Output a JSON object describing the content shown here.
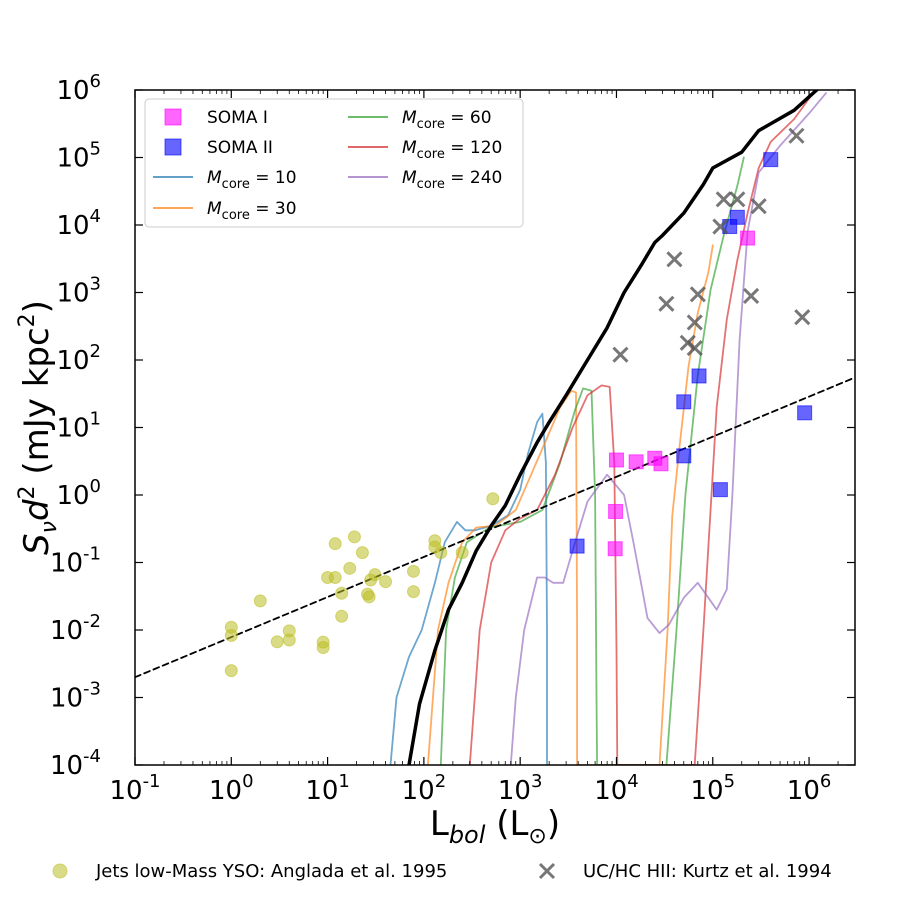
{
  "chart_data": {
    "type": "scatter",
    "title": "",
    "xlabel": "L_bol (L_sun)",
    "ylabel": "S_ν d² (mJy kpc²)",
    "xscale": "log",
    "yscale": "log",
    "xlim": [
      0.1,
      3000000
    ],
    "ylim": [
      0.0001,
      1000000
    ],
    "grid": false,
    "legend_placement": "top-left",
    "x_ticks": [
      {
        "exp": "-1",
        "value": 0.1
      },
      {
        "exp": "0",
        "value": 1
      },
      {
        "exp": "1",
        "value": 10
      },
      {
        "exp": "2",
        "value": 100
      },
      {
        "exp": "3",
        "value": 1000
      },
      {
        "exp": "4",
        "value": 10000
      },
      {
        "exp": "5",
        "value": 100000
      },
      {
        "exp": "6",
        "value": 1000000
      }
    ],
    "y_ticks": [
      {
        "exp": "-4",
        "value": 0.0001
      },
      {
        "exp": "-3",
        "value": 0.001
      },
      {
        "exp": "-2",
        "value": 0.01
      },
      {
        "exp": "-1",
        "value": 0.1
      },
      {
        "exp": "0",
        "value": 1
      },
      {
        "exp": "1",
        "value": 10
      },
      {
        "exp": "2",
        "value": 100
      },
      {
        "exp": "3",
        "value": 1000
      },
      {
        "exp": "4",
        "value": 10000
      },
      {
        "exp": "5",
        "value": 100000
      },
      {
        "exp": "6",
        "value": 1000000
      }
    ],
    "scatter_series": [
      {
        "name": "SOMA I",
        "marker": "square",
        "color": "#ff00ff",
        "points": [
          [
            10000,
            3.3
          ],
          [
            16000,
            3.1
          ],
          [
            25000,
            3.5
          ],
          [
            29000,
            2.9
          ],
          [
            9800,
            0.57
          ],
          [
            9700,
            0.16
          ],
          [
            230000,
            6400
          ]
        ]
      },
      {
        "name": "SOMA II",
        "marker": "square",
        "color": "#0000ff",
        "points": [
          [
            3900,
            0.175
          ],
          [
            50000,
            24
          ],
          [
            72000,
            58
          ],
          [
            50000,
            3.8
          ],
          [
            120000,
            1.2
          ],
          [
            150000,
            9500
          ],
          [
            180000,
            13000
          ],
          [
            400000,
            93000
          ],
          [
            900000,
            16.5
          ]
        ]
      },
      {
        "name": "Jets low-Mass YSO: Anglada et al. 1995",
        "marker": "circle",
        "color": "#bcbd22",
        "points": [
          [
            1,
            0.011
          ],
          [
            1,
            0.0083
          ],
          [
            1,
            0.0025
          ],
          [
            2,
            0.027
          ],
          [
            3,
            0.0067
          ],
          [
            4,
            0.0097
          ],
          [
            4,
            0.0071
          ],
          [
            9,
            0.0066
          ],
          [
            9,
            0.0055
          ],
          [
            10,
            0.06
          ],
          [
            12,
            0.06
          ],
          [
            12,
            0.19
          ],
          [
            14,
            0.016
          ],
          [
            14,
            0.035
          ],
          [
            17,
            0.082
          ],
          [
            19,
            0.24
          ],
          [
            23,
            0.14
          ],
          [
            26,
            0.034
          ],
          [
            27,
            0.031
          ],
          [
            28,
            0.055
          ],
          [
            31,
            0.066
          ],
          [
            40,
            0.052
          ],
          [
            78,
            0.037
          ],
          [
            78,
            0.074
          ],
          [
            130,
            0.21
          ],
          [
            130,
            0.17
          ],
          [
            150,
            0.14
          ],
          [
            250,
            0.14
          ],
          [
            520,
            0.88
          ]
        ]
      },
      {
        "name": "UC/HC HII: Kurtz et al. 1994",
        "marker": "x",
        "color": "#555555",
        "points": [
          [
            11000,
            120
          ],
          [
            33000,
            680
          ],
          [
            40000,
            3100
          ],
          [
            55000,
            180
          ],
          [
            65000,
            150
          ],
          [
            65000,
            360
          ],
          [
            70000,
            940
          ],
          [
            120000,
            9500
          ],
          [
            130000,
            24000
          ],
          [
            180000,
            24000
          ],
          [
            250000,
            890
          ],
          [
            300000,
            19000
          ],
          [
            740000,
            210000
          ],
          [
            850000,
            430
          ]
        ]
      }
    ],
    "line_series": [
      {
        "name": "M_core=10",
        "color": "#1f77b4",
        "points": [
          [
            45,
            0.0001
          ],
          [
            52,
            0.001
          ],
          [
            70,
            0.004
          ],
          [
            95,
            0.01
          ],
          [
            130,
            0.05
          ],
          [
            165,
            0.2
          ],
          [
            220,
            0.4
          ],
          [
            270,
            0.3
          ],
          [
            340,
            0.3
          ],
          [
            500,
            0.35
          ],
          [
            750,
            0.5
          ],
          [
            1000,
            1.2
          ],
          [
            1200,
            4
          ],
          [
            1500,
            12
          ],
          [
            1700,
            16
          ],
          [
            1850,
            3
          ],
          [
            1900,
            0.01
          ],
          [
            1900,
            0.0001
          ]
        ]
      },
      {
        "name": "M_core=30",
        "color": "#ff7f0e",
        "points": [
          [
            110,
            0.0001
          ],
          [
            140,
            0.01
          ],
          [
            180,
            0.05
          ],
          [
            250,
            0.2
          ],
          [
            350,
            0.33
          ],
          [
            550,
            0.35
          ],
          [
            900,
            0.6
          ],
          [
            1300,
            2
          ],
          [
            1900,
            7
          ],
          [
            2600,
            20
          ],
          [
            3400,
            35
          ],
          [
            3800,
            33
          ],
          [
            3900,
            0.01
          ],
          [
            3900,
            0.0001
          ],
          [
            28000,
            0.0001
          ],
          [
            34000,
            0.01
          ],
          [
            38000,
            0.5
          ],
          [
            45000,
            5
          ],
          [
            56000,
            80
          ],
          [
            70000,
            500
          ],
          [
            90000,
            2000
          ],
          [
            100000,
            5000
          ]
        ]
      },
      {
        "name": "M_core=60",
        "color": "#2ca02c",
        "points": [
          [
            150,
            0.0001
          ],
          [
            170,
            0.01
          ],
          [
            210,
            0.06
          ],
          [
            280,
            0.2
          ],
          [
            480,
            0.33
          ],
          [
            1000,
            0.4
          ],
          [
            1700,
            0.6
          ],
          [
            2600,
            3
          ],
          [
            3700,
            18
          ],
          [
            4500,
            38
          ],
          [
            5500,
            35
          ],
          [
            6000,
            1
          ],
          [
            6200,
            0.001
          ],
          [
            6300,
            0.0001
          ],
          [
            33000,
            0.0001
          ],
          [
            42000,
            0.01
          ],
          [
            52000,
            1
          ],
          [
            70000,
            60
          ],
          [
            95000,
            1100
          ],
          [
            130000,
            7000
          ],
          [
            180000,
            38000
          ],
          [
            210000,
            100000
          ]
        ]
      },
      {
        "name": "M_core=120",
        "color": "#d62728",
        "points": [
          [
            300,
            0.0001
          ],
          [
            380,
            0.01
          ],
          [
            500,
            0.1
          ],
          [
            700,
            0.3
          ],
          [
            1000,
            0.45
          ],
          [
            1500,
            0.6
          ],
          [
            2300,
            2
          ],
          [
            3500,
            10
          ],
          [
            5000,
            30
          ],
          [
            7000,
            42
          ],
          [
            8500,
            40
          ],
          [
            9500,
            3
          ],
          [
            10000,
            0.005
          ],
          [
            10200,
            0.0001
          ],
          [
            65000,
            0.0001
          ],
          [
            80000,
            0.01
          ],
          [
            110000,
            20
          ],
          [
            140000,
            400
          ],
          [
            180000,
            3000
          ],
          [
            230000,
            15000
          ],
          [
            300000,
            70000
          ],
          [
            400000,
            170000
          ],
          [
            700000,
            370000
          ],
          [
            1100000,
            900000
          ]
        ]
      },
      {
        "name": "M_core=240",
        "color": "#9467bd",
        "points": [
          [
            800,
            0.0001
          ],
          [
            900,
            0.001
          ],
          [
            1100,
            0.01
          ],
          [
            1500,
            0.06
          ],
          [
            1800,
            0.06
          ],
          [
            2200,
            0.05
          ],
          [
            2800,
            0.05
          ],
          [
            3500,
            0.15
          ],
          [
            5000,
            0.8
          ],
          [
            8000,
            2
          ],
          [
            12000,
            1
          ],
          [
            15000,
            0.2
          ],
          [
            18000,
            0.05
          ],
          [
            21000,
            0.015
          ],
          [
            28000,
            0.009
          ],
          [
            35000,
            0.012
          ],
          [
            50000,
            0.03
          ],
          [
            70000,
            0.05
          ],
          [
            90000,
            0.03
          ],
          [
            110000,
            0.02
          ],
          [
            140000,
            0.04
          ],
          [
            160000,
            1
          ],
          [
            190000,
            200
          ],
          [
            230000,
            8000
          ],
          [
            300000,
            60000
          ],
          [
            500000,
            150000
          ],
          [
            1000000,
            450000
          ],
          [
            1500000,
            900000
          ]
        ]
      },
      {
        "name": "envelope",
        "color": "#000000",
        "points": [
          [
            70,
            0.0001
          ],
          [
            90,
            0.0008
          ],
          [
            130,
            0.005
          ],
          [
            180,
            0.02
          ],
          [
            250,
            0.05
          ],
          [
            350,
            0.15
          ],
          [
            500,
            0.35
          ],
          [
            700,
            0.7
          ],
          [
            1000,
            2
          ],
          [
            1500,
            6
          ],
          [
            2000,
            12
          ],
          [
            3000,
            30
          ],
          [
            5000,
            100
          ],
          [
            8000,
            300
          ],
          [
            12000,
            1000
          ],
          [
            18000,
            2500
          ],
          [
            25000,
            5500
          ],
          [
            30000,
            7000
          ],
          [
            50000,
            15000
          ],
          [
            80000,
            40000
          ],
          [
            100000,
            70000
          ],
          [
            200000,
            120000
          ],
          [
            300000,
            250000
          ],
          [
            700000,
            500000
          ],
          [
            1200000,
            1000000
          ]
        ]
      },
      {
        "name": "fit",
        "color": "#000000",
        "dashed": true,
        "points": [
          [
            0.1,
            0.002
          ],
          [
            3000000,
            55
          ]
        ]
      }
    ],
    "legend_entries": [
      {
        "label": "SOMA I",
        "marker": "square",
        "color": "#ff00ff"
      },
      {
        "label": "SOMA II",
        "marker": "square",
        "color": "#0000ff"
      },
      {
        "label": "M",
        "sub": "core",
        "suffix": " = 10",
        "marker": "line",
        "color": "#1f77b4"
      },
      {
        "label": "M",
        "sub": "core",
        "suffix": " = 30",
        "marker": "line",
        "color": "#ff7f0e"
      },
      {
        "label": "M",
        "sub": "core",
        "suffix": " = 60",
        "marker": "line",
        "color": "#2ca02c"
      },
      {
        "label": "M",
        "sub": "core",
        "suffix": " = 120",
        "marker": "line",
        "color": "#d62728"
      },
      {
        "label": "M",
        "sub": "core",
        "suffix": " = 240",
        "marker": "line",
        "color": "#9467bd"
      }
    ],
    "bottom_legend": [
      {
        "label": "Jets low-Mass YSO: Anglada et al. 1995",
        "marker": "circle",
        "color": "#bcbd22"
      },
      {
        "label": "UC/HC HII: Kurtz et al. 1994",
        "marker": "x",
        "color": "#555555"
      }
    ]
  }
}
